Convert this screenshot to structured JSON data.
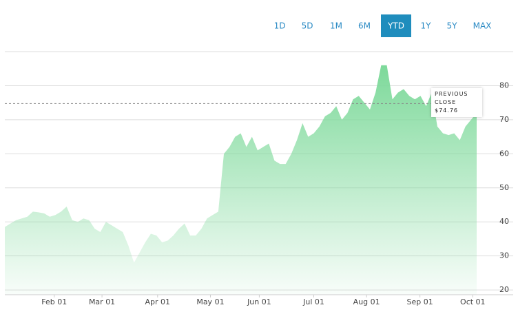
{
  "chart_data": {
    "type": "area",
    "range_buttons": [
      "1D",
      "5D",
      "1M",
      "6M",
      "YTD",
      "1Y",
      "5Y",
      "MAX"
    ],
    "active_range": "YTD",
    "values": [
      38.5,
      39.5,
      40.5,
      41,
      41.5,
      43,
      42.8,
      42.5,
      41.5,
      42,
      43,
      44.5,
      40.5,
      40,
      41,
      40.5,
      38,
      37,
      40,
      39,
      38,
      37,
      33,
      28,
      31,
      34,
      36.5,
      36,
      34,
      34.5,
      36,
      38,
      39.5,
      36,
      36,
      38,
      41,
      42,
      43,
      60,
      62,
      65,
      66,
      62,
      65,
      61,
      62,
      63,
      58,
      57,
      57,
      60,
      64,
      69,
      65,
      66,
      68,
      71,
      72,
      74,
      70,
      72,
      76,
      77,
      75,
      73,
      78,
      86,
      86,
      76,
      78,
      79,
      77,
      76,
      77,
      74,
      78,
      68,
      66,
      65.5,
      66,
      64,
      68,
      70,
      72
    ],
    "color": "#7dd99a",
    "xlim": [
      0,
      84
    ],
    "xticks": [
      {
        "value": 8.8,
        "label": "Feb 01"
      },
      {
        "value": 17.3,
        "label": "Mar 01"
      },
      {
        "value": 27.2,
        "label": "Apr 01"
      },
      {
        "value": 36.6,
        "label": "May 01"
      },
      {
        "value": 45.3,
        "label": "Jun 01"
      },
      {
        "value": 55,
        "label": "Jul 01"
      },
      {
        "value": 64.4,
        "label": "Aug 01"
      },
      {
        "value": 73.9,
        "label": "Sep 01"
      },
      {
        "value": 83.3,
        "label": "Oct 01"
      }
    ],
    "ylim": [
      18.6,
      90
    ],
    "yticks": [
      20,
      30,
      40,
      50,
      60,
      70,
      80
    ],
    "grid": true,
    "previous_close": {
      "label": "PREVIOUS CLOSE",
      "value": 74.76,
      "value_label": "$74.76"
    }
  }
}
